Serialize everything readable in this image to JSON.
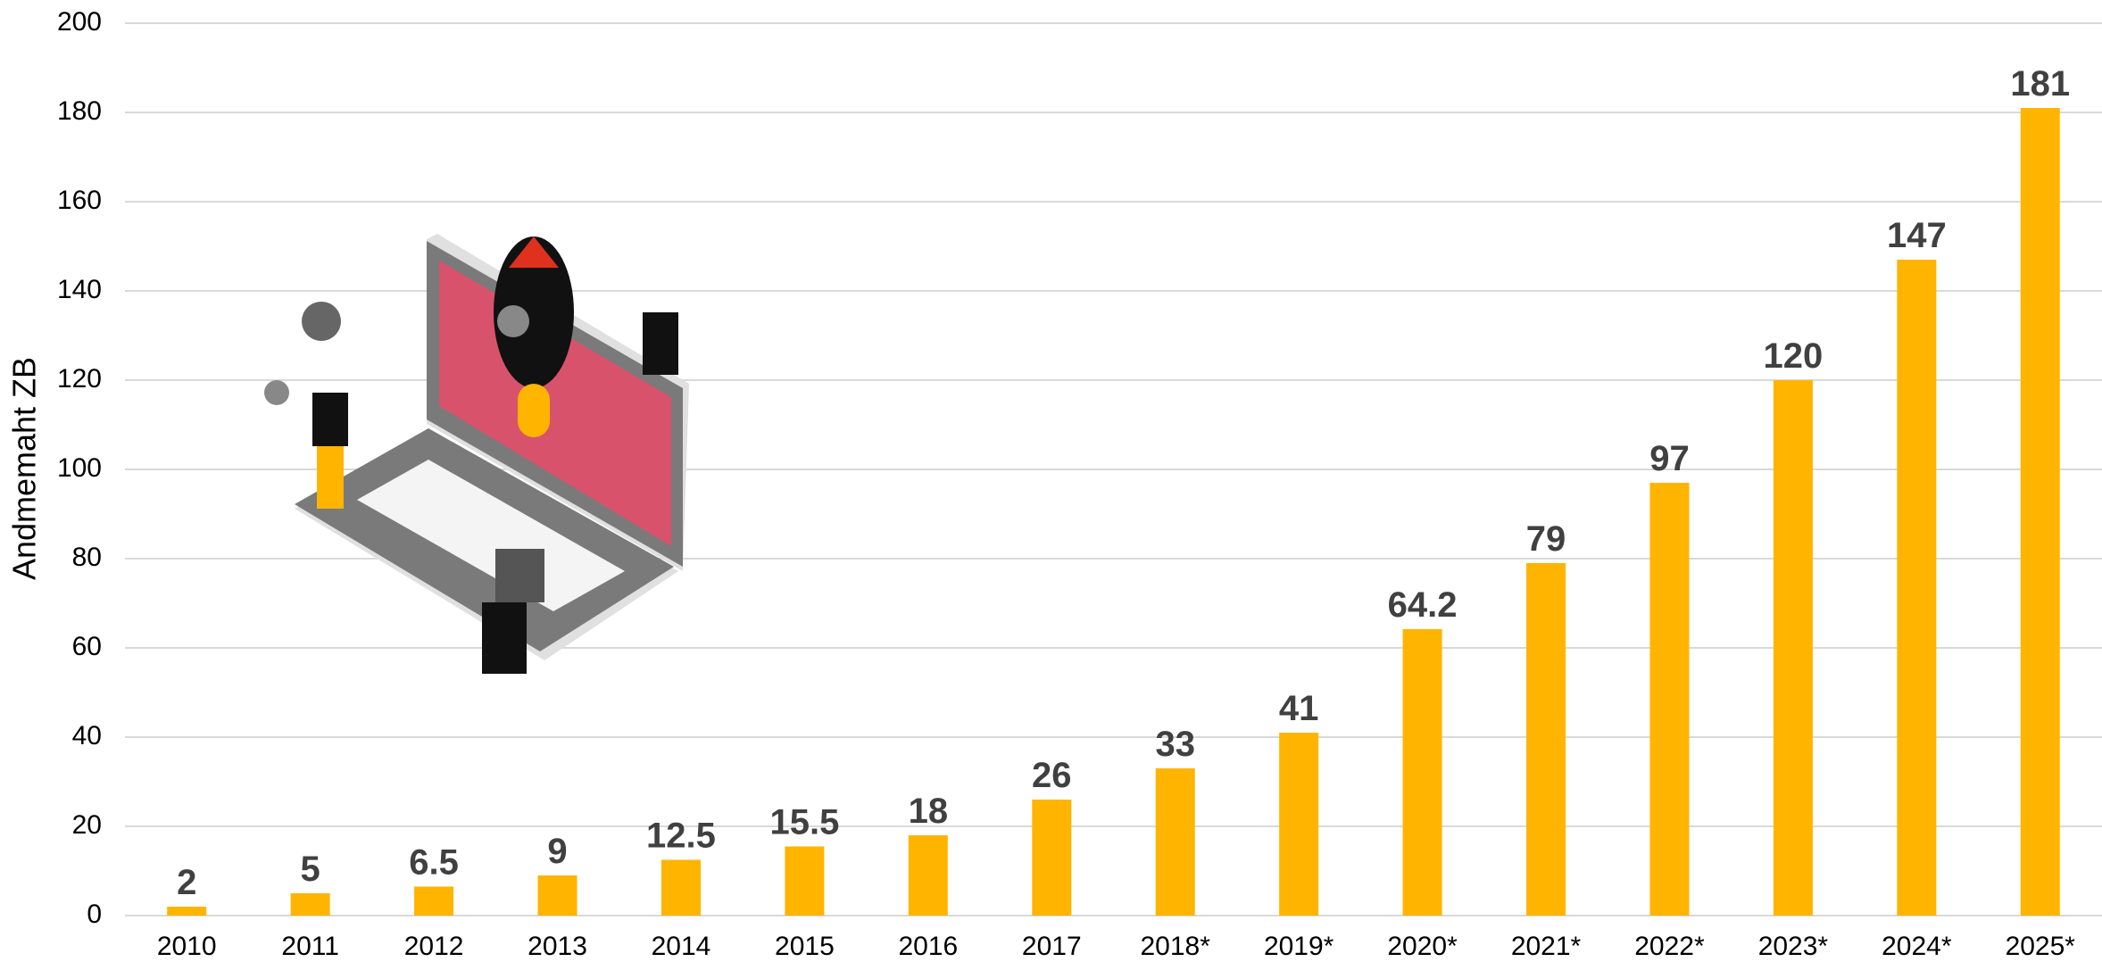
{
  "chart_data": {
    "type": "bar",
    "y_label": "Andmemaht ZB",
    "categories": [
      "2010",
      "2011",
      "2012",
      "2013",
      "2014",
      "2015",
      "2016",
      "2017",
      "2018*",
      "2019*",
      "2020*",
      "2021*",
      "2022*",
      "2023*",
      "2024*",
      "2025*"
    ],
    "values": [
      2,
      5,
      6.5,
      9,
      12.5,
      15.5,
      18,
      26,
      33,
      41,
      64.2,
      79,
      97,
      120,
      147,
      181
    ],
    "color": "#ffb400",
    "ylim": [
      0,
      200
    ],
    "yticks": [
      0,
      20,
      40,
      60,
      80,
      100,
      120,
      140,
      160,
      180,
      200
    ],
    "grid": true
  }
}
